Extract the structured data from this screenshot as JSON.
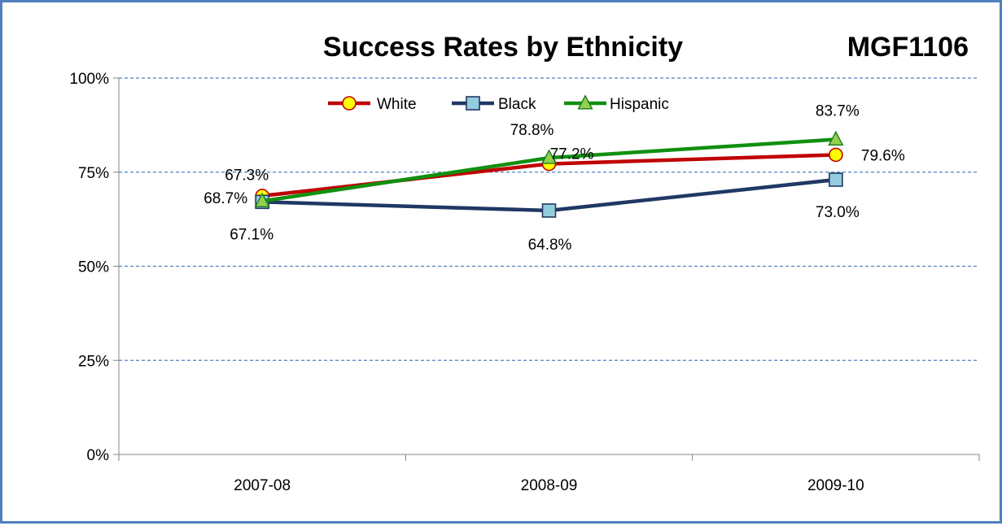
{
  "chart_data": {
    "type": "line",
    "title": "Success Rates by Ethnicity",
    "subtitle": "MGF1106",
    "categories": [
      "2007-08",
      "2008-09",
      "2009-10"
    ],
    "ylim": [
      0,
      100
    ],
    "yticks": [
      "0%",
      "25%",
      "50%",
      "75%",
      "100%"
    ],
    "grid": true,
    "legend_position": "top-center",
    "series": [
      {
        "name": "White",
        "values": [
          68.7,
          77.2,
          79.6
        ],
        "labels": [
          "68.7%",
          "77.2%",
          "79.6%"
        ],
        "color": "#c00000",
        "marker": "circle",
        "marker_fill": "#ffff00"
      },
      {
        "name": "Black",
        "values": [
          67.1,
          64.8,
          73.0
        ],
        "labels": [
          "67.1%",
          "64.8%",
          "73.0%"
        ],
        "color": "#1f3864",
        "marker": "square",
        "marker_fill": "#93cddd"
      },
      {
        "name": "Hispanic",
        "values": [
          67.3,
          78.8,
          83.7
        ],
        "labels": [
          "67.3%",
          "78.8%",
          "83.7%"
        ],
        "color": "#109010",
        "marker": "triangle",
        "marker_fill": "#92d050"
      }
    ]
  }
}
